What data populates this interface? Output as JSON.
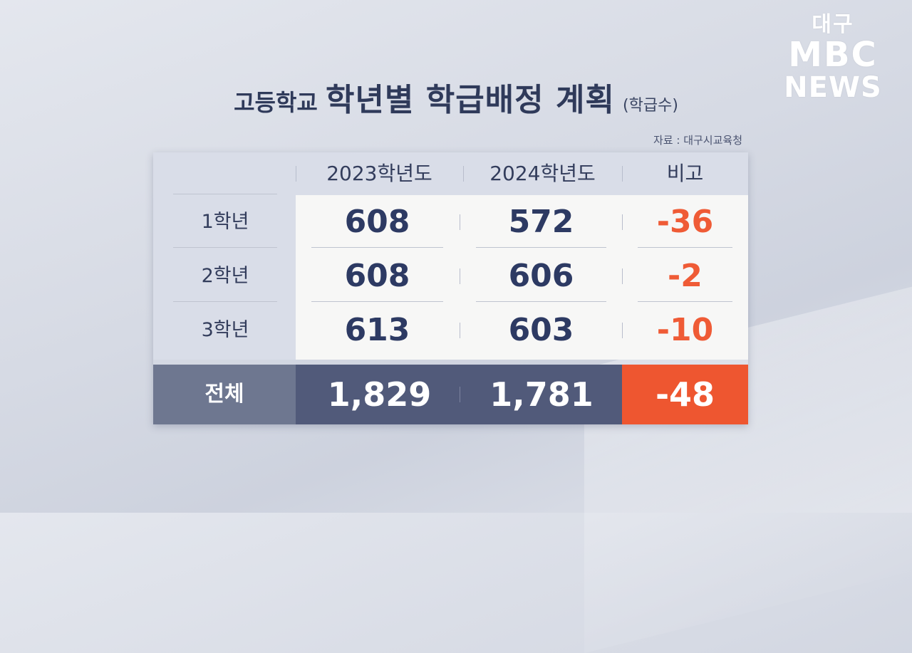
{
  "logo": {
    "city": "대구",
    "brand": "MBC",
    "sub": "NEWS"
  },
  "title": {
    "prefix": "고등학교",
    "main": "학년별 학급배정 계획",
    "unit": "(학급수)"
  },
  "source": "자료 : 대구시교육청",
  "chart_data": {
    "type": "table",
    "columns": [
      "",
      "2023학년도",
      "2024학년도",
      "비고"
    ],
    "rows": [
      {
        "label": "1학년",
        "y2023": "608",
        "y2024": "572",
        "diff": "-36"
      },
      {
        "label": "2학년",
        "y2023": "608",
        "y2024": "606",
        "diff": "-2"
      },
      {
        "label": "3학년",
        "y2023": "613",
        "y2024": "603",
        "diff": "-10"
      }
    ],
    "total": {
      "label": "전체",
      "y2023": "1,829",
      "y2024": "1,781",
      "diff": "-48"
    },
    "colors": {
      "diff_text": "#ef5b36",
      "total_bg": "#515a7a",
      "total_diff_bg": "#ee5630",
      "header_bg": "#d9dde8"
    }
  }
}
